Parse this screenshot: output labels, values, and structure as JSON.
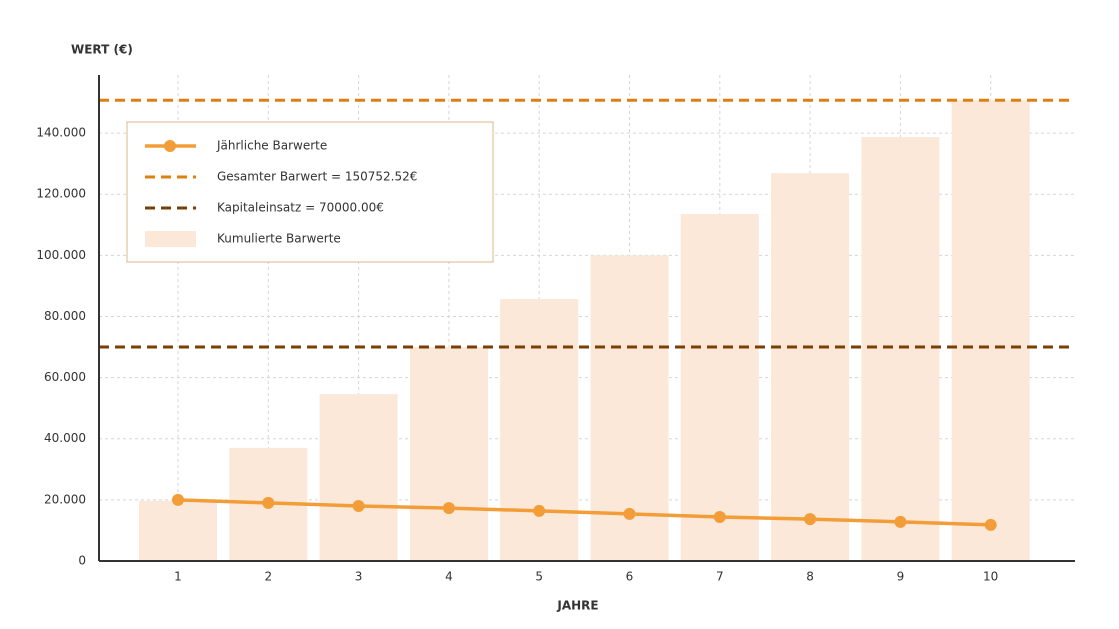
{
  "chart_data": {
    "type": "bar-line",
    "y_label": "WERT (€)",
    "x_label": "JAHRE",
    "categories": [
      "1",
      "2",
      "3",
      "4",
      "5",
      "6",
      "7",
      "8",
      "9",
      "10"
    ],
    "series": [
      {
        "name": "Kumulierte Barwerte",
        "type": "bar",
        "color": "#fbe8d8",
        "values": [
          19700,
          37000,
          54600,
          70000,
          85700,
          100000,
          113500,
          126900,
          138700,
          150750
        ]
      },
      {
        "name": "Jährliche Barwerte",
        "type": "line",
        "color": "#f29d38",
        "values": [
          20000,
          19000,
          18000,
          17300,
          16400,
          15400,
          14400,
          13700,
          12800,
          11800
        ]
      }
    ],
    "reference_lines": [
      {
        "name": "Gesamter Barwert = 150752.52€",
        "value": 150752.52,
        "color": "#e07f10"
      },
      {
        "name": "Kapitaleinsatz = 70000.00€",
        "value": 70000,
        "color": "#7a3f00"
      }
    ],
    "ylim": [
      0,
      159000
    ],
    "yticks": [
      0,
      {
        "value": 20000,
        "label": "20.000"
      },
      {
        "value": 40000,
        "label": "40.000"
      },
      {
        "value": 60000,
        "label": "60.000"
      },
      {
        "value": 80000,
        "label": "80.000"
      },
      {
        "value": 100000,
        "label": "100.000"
      },
      {
        "value": 120000,
        "label": "120.000"
      },
      {
        "value": 140000,
        "label": "140.000"
      }
    ],
    "grid": true
  }
}
